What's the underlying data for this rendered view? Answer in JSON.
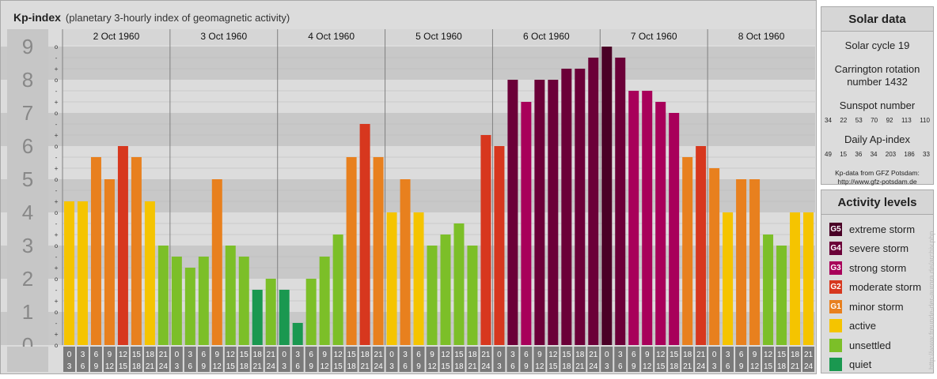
{
  "header": {
    "title": "Kp-index",
    "subtitle": "(planetary 3-hourly index of geomagnetic activity)"
  },
  "chart_data": {
    "type": "bar",
    "title": "Kp-index",
    "subtitle": "(planetary 3-hourly index of geomagnetic activity)",
    "ylim": [
      0,
      9
    ],
    "y_ticks": [
      "0",
      "1",
      "2",
      "3",
      "4",
      "5",
      "6",
      "7",
      "8",
      "9"
    ],
    "minor_ticks": [
      "o",
      "+",
      "-"
    ],
    "days": [
      "2 Oct 1960",
      "3 Oct 1960",
      "4 Oct 1960",
      "5 Oct 1960",
      "6 Oct 1960",
      "7 Oct 1960",
      "8 Oct 1960"
    ],
    "interval_labels": [
      [
        "0",
        "3"
      ],
      [
        "3",
        "6"
      ],
      [
        "6",
        "9"
      ],
      [
        "9",
        "12"
      ],
      [
        "12",
        "15"
      ],
      [
        "15",
        "18"
      ],
      [
        "18",
        "21"
      ],
      [
        "21",
        "24"
      ]
    ],
    "values": [
      4.333,
      4.333,
      5.667,
      5,
      6,
      5.667,
      4.333,
      3,
      2.667,
      2.333,
      2.667,
      5,
      3,
      2.667,
      1.667,
      2,
      1.667,
      0.667,
      2,
      2.667,
      3.333,
      5.667,
      6.667,
      5.667,
      4,
      5,
      4,
      3,
      3.333,
      3.667,
      3,
      6.333,
      6,
      8,
      7.333,
      8,
      8,
      8.333,
      8.333,
      8.667,
      9,
      8.667,
      7.667,
      7.667,
      7.333,
      7,
      5.667,
      6,
      5.333,
      4,
      5,
      5,
      3.333,
      3,
      4,
      4
    ],
    "colors": {
      "quiet": "#1a9850",
      "unsettled": "#7cbf28",
      "active": "#f5c400",
      "G1": "#e8801e",
      "G2": "#d7371e",
      "G3": "#a8005a",
      "G4": "#6b0038",
      "G5": "#4a0026",
      "bar_highlight_extreme": "#4a0026"
    }
  },
  "solar": {
    "title": "Solar data",
    "cycle": "Solar cycle 19",
    "carrington_line1": "Carrington rotation",
    "carrington_line2": "number 1432",
    "sunspot_title": "Sunspot number",
    "sunspot_values": [
      "34",
      "22",
      "53",
      "70",
      "92",
      "113",
      "110"
    ],
    "ap_title": "Daily Ap-index",
    "ap_values": [
      "49",
      "15",
      "36",
      "34",
      "203",
      "186",
      "33"
    ],
    "credit1": "Kp-data from GFZ Potsdam:",
    "credit2": "http://www.gfz-potsdam.de"
  },
  "activity": {
    "title": "Activity levels",
    "items": [
      {
        "code": "G5",
        "label": "extreme storm",
        "color": "#4a0026"
      },
      {
        "code": "G4",
        "label": "severe storm",
        "color": "#6b0038"
      },
      {
        "code": "G3",
        "label": "strong storm",
        "color": "#a8005a"
      },
      {
        "code": "G2",
        "label": "moderate storm",
        "color": "#d7371e"
      },
      {
        "code": "G1",
        "label": "minor storm",
        "color": "#e8801e"
      },
      {
        "code": "",
        "label": "active",
        "color": "#f5c400"
      },
      {
        "code": "",
        "label": "unsettled",
        "color": "#7cbf28"
      },
      {
        "code": "",
        "label": "quiet",
        "color": "#1a9850"
      }
    ]
  },
  "watermark": "http://www.freunde-der-aurora.de/archiv.php"
}
